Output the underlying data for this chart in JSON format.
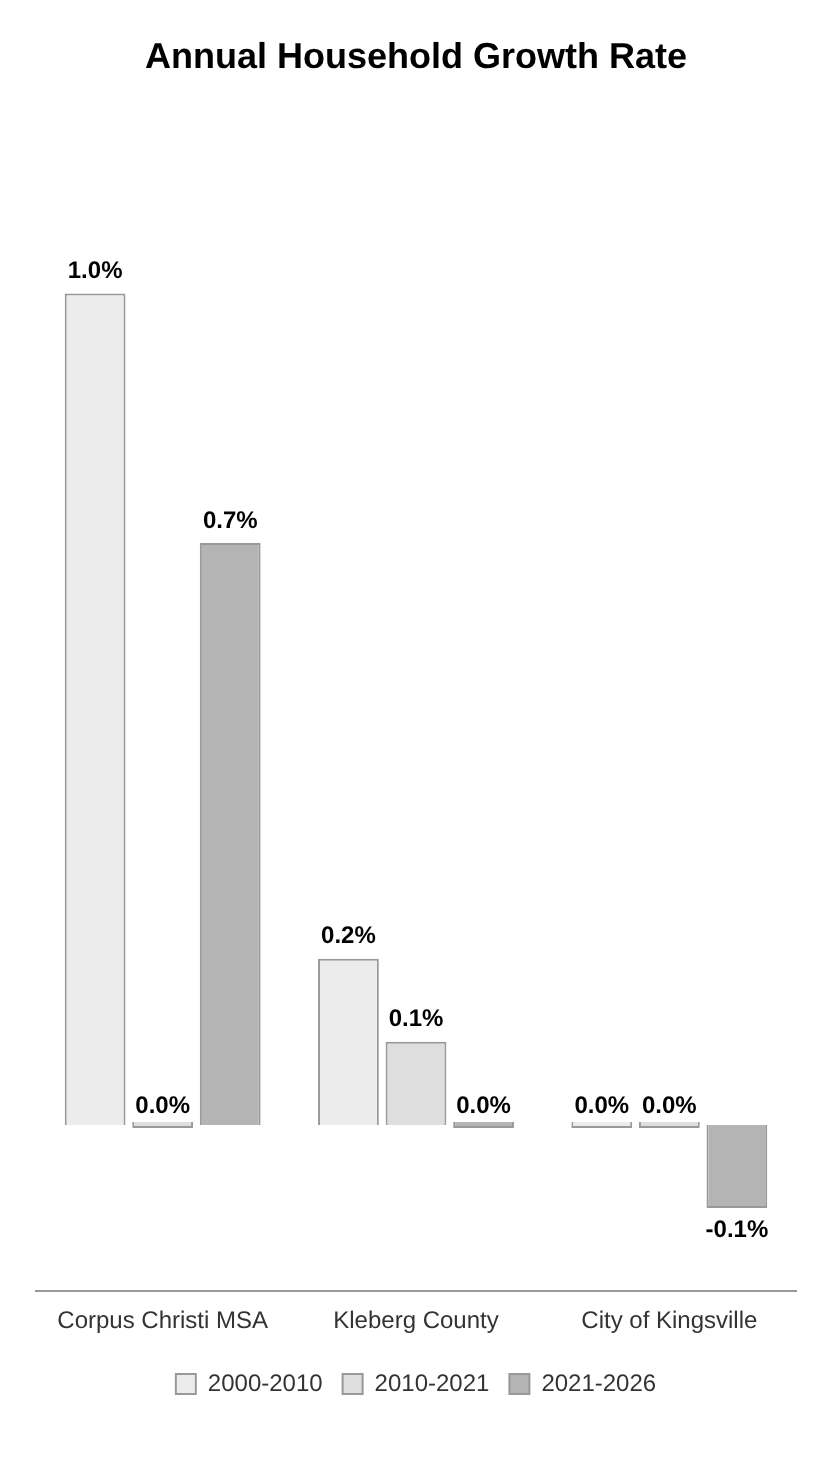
{
  "chart_data": {
    "type": "bar",
    "title": "Annual Household Growth Rate",
    "categories": [
      "Corpus Christi MSA",
      "Kleberg County",
      "City of Kingsville"
    ],
    "series": [
      {
        "name": "2000-2010",
        "color": "#ececec",
        "values": [
          1.0,
          0.2,
          0.0
        ],
        "value_labels": [
          "1.0%",
          "0.2%",
          "0.0%"
        ]
      },
      {
        "name": "2010-2021",
        "color": "#dedede",
        "values": [
          0.0,
          0.1,
          0.0
        ],
        "value_labels": [
          "0.0%",
          "0.1%",
          "0.0%"
        ]
      },
      {
        "name": "2021-2026",
        "color": "#b4b4b4",
        "values": [
          0.7,
          0.0,
          -0.1
        ],
        "value_labels": [
          "0.7%",
          "0.0%",
          "-0.1%"
        ]
      }
    ],
    "grid": false,
    "legend": "bottom"
  }
}
